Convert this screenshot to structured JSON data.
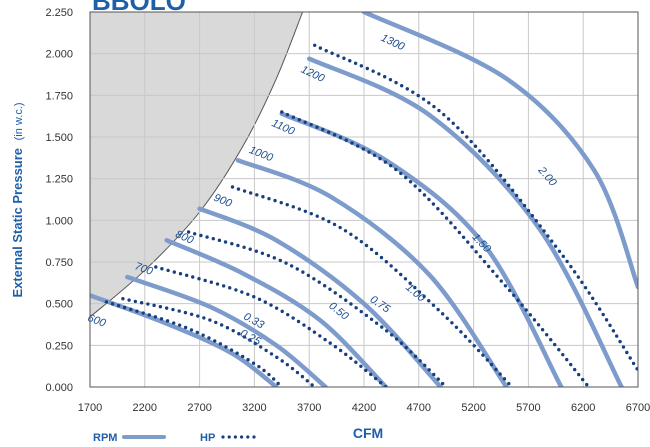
{
  "chart_data": {
    "type": "line",
    "title": "BBOLO",
    "xlabel": "CFM",
    "ylabel": "External Static Pressure",
    "ylabel_unit": "(in w.c.)",
    "xlim": [
      1700,
      6700
    ],
    "ylim": [
      0,
      2.25
    ],
    "x_ticks": [
      "1700",
      "2200",
      "2700",
      "3200",
      "3700",
      "4200",
      "4700",
      "5200",
      "5700",
      "6200",
      "6700"
    ],
    "y_ticks": [
      "0.000",
      "0.250",
      "0.500",
      "0.750",
      "1.000",
      "1.250",
      "1.500",
      "1.750",
      "2.000",
      "2.250"
    ],
    "grid": true,
    "colors": {
      "rpm_line": "#7d9bcb",
      "hp_dots": "#173f7f",
      "shaded_region": "#d9d9d9",
      "axis_title": "#1f5fa8"
    },
    "legend": {
      "position": "bottom-left",
      "rpm_label": "RPM",
      "hp_label": "HP"
    },
    "rpm_series": [
      {
        "name": "600",
        "points": [
          [
            1700,
            0.55
          ],
          [
            2400,
            0.38
          ],
          [
            3000,
            0.2
          ],
          [
            3400,
            0.0
          ]
        ]
      },
      {
        "name": "700",
        "points": [
          [
            2040,
            0.66
          ],
          [
            2800,
            0.48
          ],
          [
            3400,
            0.25
          ],
          [
            3850,
            0.0
          ]
        ]
      },
      {
        "name": "800",
        "points": [
          [
            2400,
            0.88
          ],
          [
            3100,
            0.68
          ],
          [
            3800,
            0.4
          ],
          [
            4400,
            0.0
          ]
        ]
      },
      {
        "name": "900",
        "points": [
          [
            2700,
            1.07
          ],
          [
            3400,
            0.88
          ],
          [
            4200,
            0.5
          ],
          [
            4900,
            0.0
          ]
        ]
      },
      {
        "name": "1000",
        "points": [
          [
            3050,
            1.36
          ],
          [
            3900,
            1.14
          ],
          [
            4800,
            0.67
          ],
          [
            5500,
            0.0
          ]
        ]
      },
      {
        "name": "1100",
        "points": [
          [
            3450,
            1.64
          ],
          [
            4400,
            1.36
          ],
          [
            5300,
            0.85
          ],
          [
            6000,
            0.0
          ]
        ]
      },
      {
        "name": "1200",
        "points": [
          [
            3700,
            1.97
          ],
          [
            4800,
            1.63
          ],
          [
            5800,
            0.95
          ],
          [
            6550,
            0.0
          ]
        ]
      },
      {
        "name": "1300",
        "points": [
          [
            4200,
            2.25
          ],
          [
            5500,
            1.85
          ],
          [
            6300,
            1.3
          ],
          [
            6700,
            0.6
          ]
        ]
      }
    ],
    "hp_series": [
      {
        "name": "0.25",
        "points": [
          [
            1850,
            0.51
          ],
          [
            2600,
            0.35
          ],
          [
            3200,
            0.14
          ],
          [
            3450,
            0.0
          ]
        ]
      },
      {
        "name": "0.33",
        "points": [
          [
            2000,
            0.53
          ],
          [
            2800,
            0.4
          ],
          [
            3400,
            0.18
          ],
          [
            3750,
            0.0
          ]
        ]
      },
      {
        "name": "0.50",
        "points": [
          [
            2300,
            0.72
          ],
          [
            3200,
            0.54
          ],
          [
            3900,
            0.26
          ],
          [
            4400,
            0.0
          ]
        ]
      },
      {
        "name": "0.75",
        "points": [
          [
            2600,
            0.93
          ],
          [
            3500,
            0.74
          ],
          [
            4400,
            0.34
          ],
          [
            4950,
            0.0
          ]
        ]
      },
      {
        "name": "1.00",
        "points": [
          [
            3000,
            1.2
          ],
          [
            4000,
            0.95
          ],
          [
            4900,
            0.45
          ],
          [
            5550,
            0.0
          ]
        ]
      },
      {
        "name": "1.50",
        "points": [
          [
            3450,
            1.65
          ],
          [
            4500,
            1.3
          ],
          [
            5500,
            0.6
          ],
          [
            6250,
            0.0
          ]
        ]
      },
      {
        "name": "2.00",
        "points": [
          [
            3750,
            2.05
          ],
          [
            4900,
            1.65
          ],
          [
            6000,
            0.8
          ],
          [
            6700,
            0.1
          ]
        ]
      }
    ],
    "shaded_boundary": [
      [
        1700,
        0.42
      ],
      [
        2200,
        0.7
      ],
      [
        2700,
        1.05
      ],
      [
        3100,
        1.45
      ],
      [
        3400,
        1.85
      ],
      [
        3640,
        2.25
      ]
    ],
    "rpm_label_points": [
      [
        1750,
        0.38
      ],
      [
        2180,
        0.69
      ],
      [
        2550,
        0.88
      ],
      [
        2900,
        1.1
      ],
      [
        3250,
        1.38
      ],
      [
        3450,
        1.54
      ],
      [
        3720,
        1.86
      ],
      [
        4450,
        2.05
      ]
    ],
    "hp_label_points": [
      [
        3150,
        0.28
      ],
      [
        3180,
        0.38
      ],
      [
        3950,
        0.44
      ],
      [
        4330,
        0.48
      ],
      [
        4650,
        0.55
      ],
      [
        5250,
        0.85
      ],
      [
        5850,
        1.25
      ]
    ]
  }
}
